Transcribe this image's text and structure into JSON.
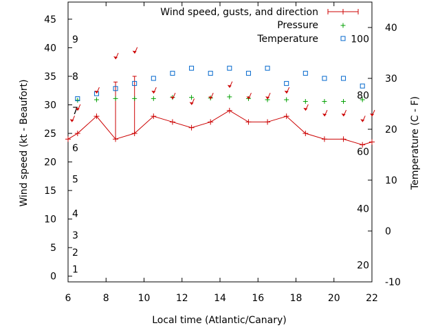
{
  "chart_data": {
    "type": "line",
    "xlabel": "Local time (Atlantic/Canary)",
    "ylabel": "Wind speed (kt - Beaufort)",
    "y2label": "Temperature (C - F)",
    "xlim": [
      6,
      22
    ],
    "ylim": [
      -1,
      48
    ],
    "y2lim": [
      -10,
      45
    ],
    "x_ticks": [
      6,
      8,
      10,
      12,
      14,
      16,
      18,
      20,
      22
    ],
    "y_ticks": [
      0,
      5,
      10,
      15,
      20,
      25,
      30,
      35,
      40,
      45
    ],
    "y2_ticks": [
      -10,
      0,
      10,
      20,
      30,
      40
    ],
    "beaufort_labels": [
      {
        "label": "1",
        "y": 1.2
      },
      {
        "label": "2",
        "y": 4.2
      },
      {
        "label": "3",
        "y": 7.2
      },
      {
        "label": "4",
        "y": 11.0
      },
      {
        "label": "5",
        "y": 17.0
      },
      {
        "label": "6",
        "y": 22.5
      },
      {
        "label": "7",
        "y": 29.0
      },
      {
        "label": "8",
        "y": 35.0
      },
      {
        "label": "9",
        "y": 41.5
      }
    ],
    "fahrenheit_labels": [
      {
        "label": "20",
        "y2": -6.7
      },
      {
        "label": "40",
        "y2": 4.4
      },
      {
        "label": "60",
        "y2": 15.6
      },
      {
        "label": "80",
        "y2": 26.7
      },
      {
        "label": "100",
        "y2": 37.8
      }
    ],
    "legend_position": "top-right",
    "series": [
      {
        "name": "Wind speed, gusts, and direction",
        "color": "#cc0000",
        "x": [
          6.0,
          6.5,
          7.5,
          8.5,
          9.5,
          10.5,
          11.5,
          12.5,
          13.5,
          14.5,
          15.5,
          16.5,
          17.5,
          18.5,
          19.5,
          20.5,
          21.5,
          22.0
        ],
        "values": [
          24,
          25,
          28,
          24,
          25,
          28,
          27,
          26,
          27,
          29,
          27,
          27,
          28,
          25,
          24,
          24,
          23,
          23.5
        ],
        "gusts": [
          null,
          null,
          null,
          34,
          35,
          null,
          null,
          null,
          null,
          null,
          null,
          null,
          null,
          null,
          null,
          null,
          null,
          null
        ]
      },
      {
        "name": "Pressure",
        "color": "#00a000",
        "x": [
          6.5,
          7.5,
          8.5,
          9.5,
          10.5,
          11.5,
          12.5,
          13.5,
          14.5,
          15.5,
          16.5,
          17.5,
          18.5,
          19.5,
          20.5,
          21.5
        ],
        "values": [
          30.8,
          30.9,
          31.1,
          31.1,
          31.1,
          31.3,
          31.3,
          31.2,
          31.4,
          31.1,
          30.9,
          30.9,
          30.6,
          30.6,
          30.6,
          30.9
        ]
      },
      {
        "name": "Temperature",
        "color": "#0066cc",
        "x": [
          6.5,
          7.5,
          8.5,
          9.5,
          10.5,
          11.5,
          12.5,
          13.5,
          14.5,
          15.5,
          16.5,
          17.5,
          18.5,
          19.5,
          20.5,
          21.5
        ],
        "values2": [
          26,
          27,
          28,
          29,
          30,
          31,
          32,
          31,
          32,
          31,
          32,
          29,
          31,
          30,
          30,
          28.5
        ]
      }
    ],
    "wind_arrows": {
      "x": [
        6.2,
        6.5,
        7.5,
        8.5,
        9.5,
        10.5,
        11.5,
        12.5,
        13.5,
        14.5,
        15.5,
        16.5,
        17.5,
        18.5,
        19.5,
        20.5,
        21.5,
        22.0
      ],
      "y": [
        27,
        29,
        32,
        38,
        39,
        32,
        31,
        30,
        31,
        33,
        31,
        31,
        32,
        29,
        28,
        28,
        27,
        28
      ]
    }
  }
}
